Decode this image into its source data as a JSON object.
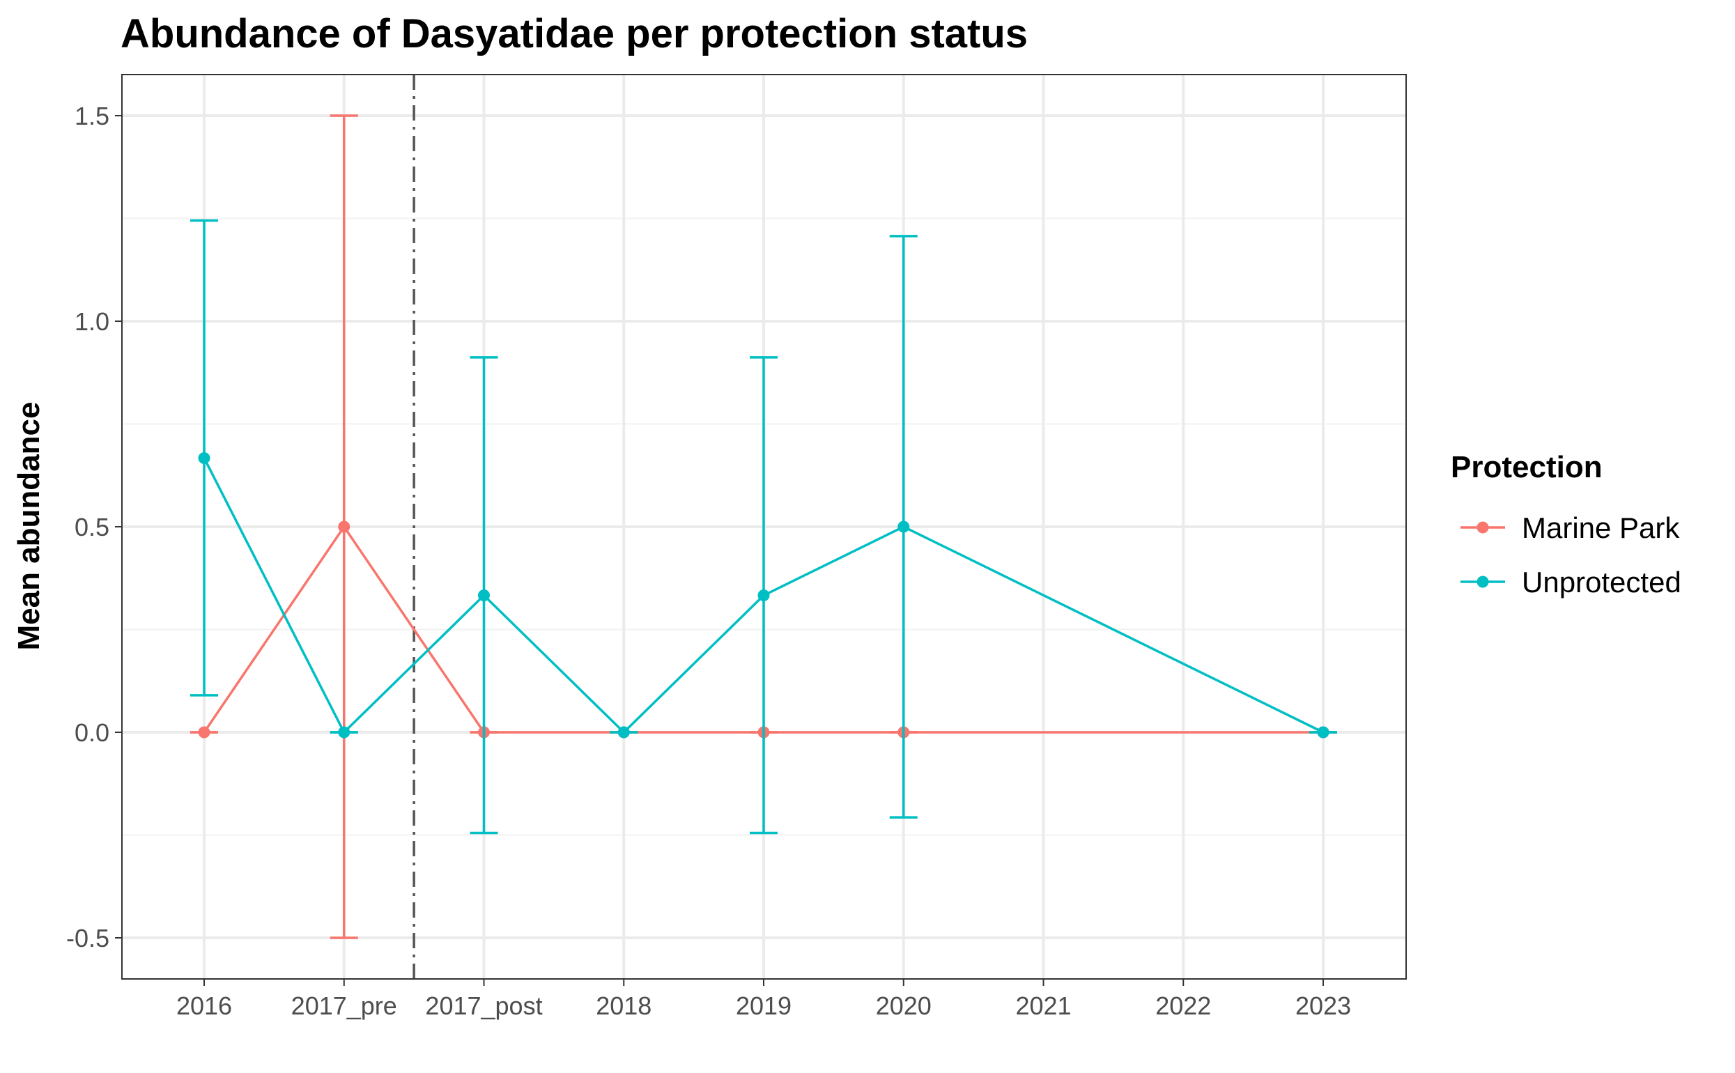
{
  "chart_data": {
    "type": "line",
    "title": "Abundance of Dasyatidae per protection status",
    "xlabel": "",
    "ylabel": "Mean abundance",
    "categories": [
      "2016",
      "2017_pre",
      "2017_post",
      "2018",
      "2019",
      "2020",
      "2021",
      "2022",
      "2023"
    ],
    "ylim": [
      -0.6,
      1.6
    ],
    "yticks": [
      -0.5,
      0.0,
      0.5,
      1.0,
      1.5
    ],
    "ytick_labels": [
      "-0.5",
      "0.0",
      "0.5",
      "1.0",
      "1.5"
    ],
    "grid": true,
    "legend_title": "Protection",
    "legend_position": "right",
    "reference_line": {
      "between": [
        "2017_pre",
        "2017_post"
      ],
      "style": "dashdot"
    },
    "series": [
      {
        "name": "Marine Park",
        "color": "#F8766D",
        "points": [
          {
            "x": "2016",
            "y": 0.0,
            "ymin": 0.0,
            "ymax": 0.0
          },
          {
            "x": "2017_pre",
            "y": 0.5,
            "ymin": -0.5,
            "ymax": 1.5
          },
          {
            "x": "2017_post",
            "y": 0.0,
            "ymin": 0.0,
            "ymax": 0.0
          },
          {
            "x": "2018",
            "y": 0.0,
            "ymin": 0.0,
            "ymax": 0.0
          },
          {
            "x": "2019",
            "y": 0.0,
            "ymin": 0.0,
            "ymax": 0.0
          },
          {
            "x": "2020",
            "y": 0.0,
            "ymin": 0.0,
            "ymax": 0.0
          },
          {
            "x": "2023",
            "y": 0.0,
            "ymin": 0.0,
            "ymax": 0.0
          }
        ]
      },
      {
        "name": "Unprotected",
        "color": "#00BFC4",
        "points": [
          {
            "x": "2016",
            "y": 0.667,
            "ymin": 0.09,
            "ymax": 1.245
          },
          {
            "x": "2017_pre",
            "y": 0.0,
            "ymin": 0.0,
            "ymax": 0.0
          },
          {
            "x": "2017_post",
            "y": 0.333,
            "ymin": -0.245,
            "ymax": 0.912
          },
          {
            "x": "2018",
            "y": 0.0,
            "ymin": 0.0,
            "ymax": 0.0
          },
          {
            "x": "2019",
            "y": 0.333,
            "ymin": -0.245,
            "ymax": 0.912
          },
          {
            "x": "2020",
            "y": 0.5,
            "ymin": -0.207,
            "ymax": 1.207
          },
          {
            "x": "2023",
            "y": 0.0,
            "ymin": 0.0,
            "ymax": 0.0
          }
        ]
      }
    ]
  }
}
